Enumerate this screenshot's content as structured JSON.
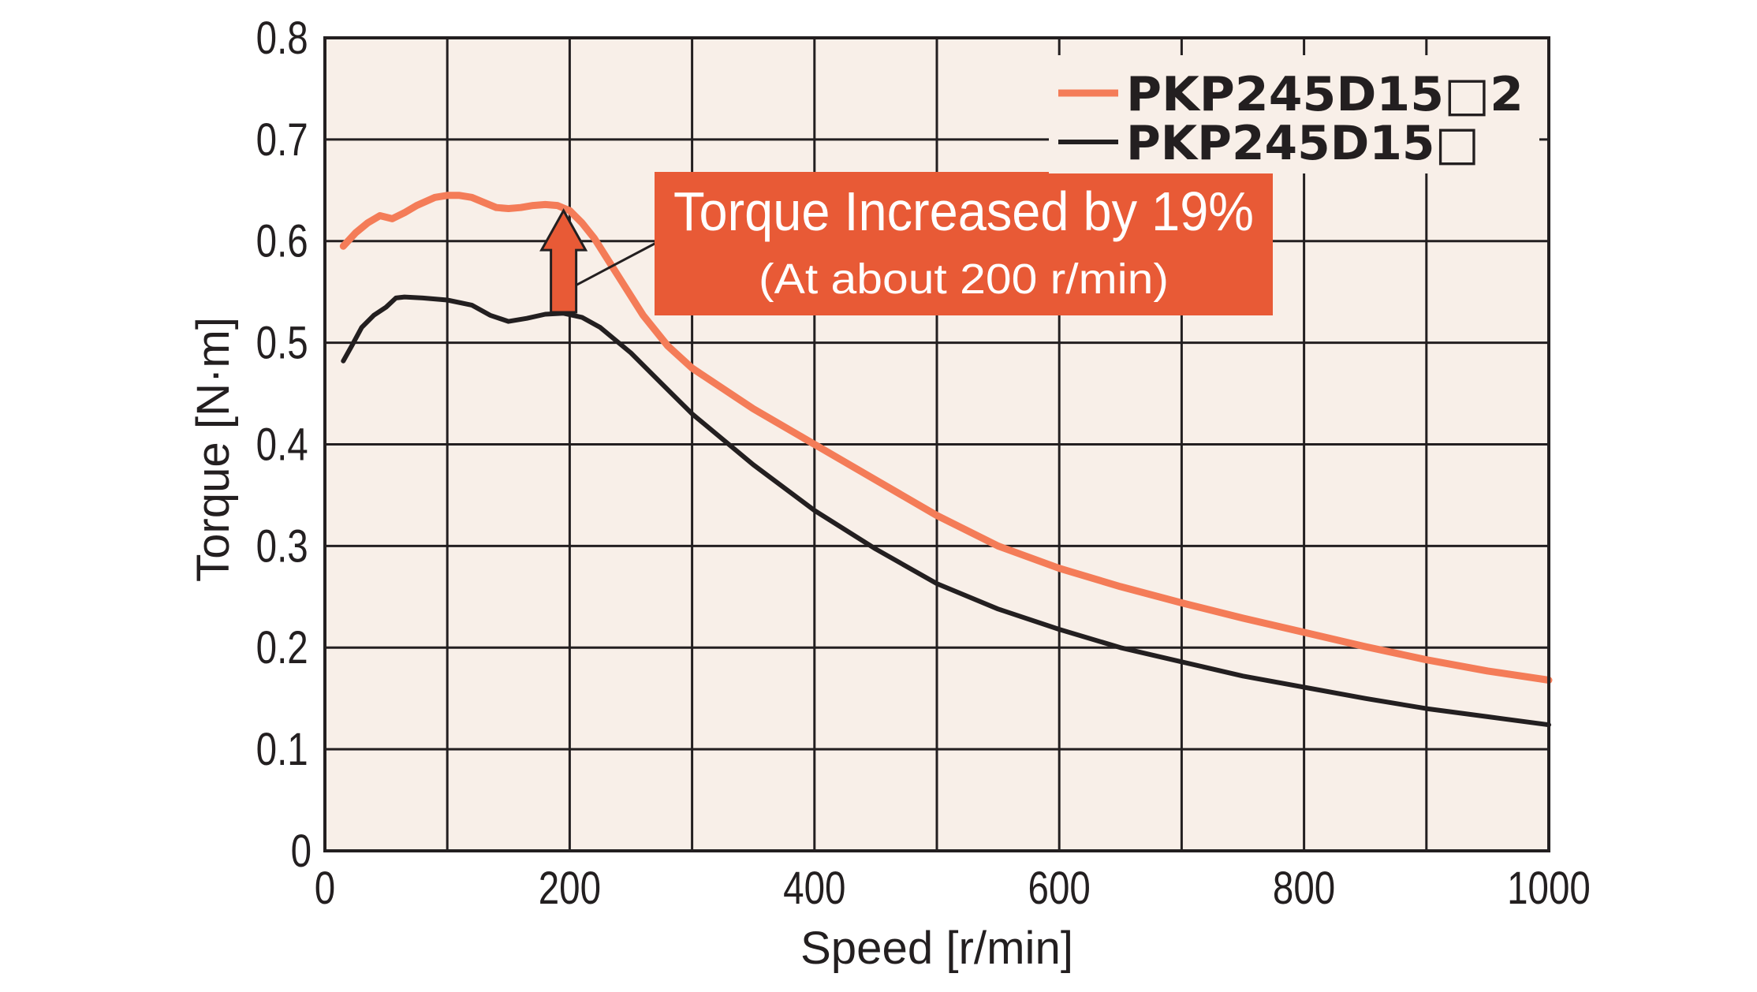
{
  "chart_data": {
    "type": "line",
    "xlabel": "Speed [r/min]",
    "ylabel": "Torque [N·m]",
    "xlim": [
      0,
      1000
    ],
    "ylim": [
      0,
      0.8
    ],
    "x_ticks": [
      "0",
      "200",
      "400",
      "600",
      "800",
      "1000"
    ],
    "y_ticks": [
      "0",
      "0.1",
      "0.2",
      "0.3",
      "0.4",
      "0.5",
      "0.6",
      "0.7",
      "0.8"
    ],
    "grid": true,
    "legend_position": "top-right",
    "background_color": "#f8efe8",
    "series": [
      {
        "name": "PKP245D15□2",
        "color": "#f47c58",
        "x": [
          15,
          25,
          35,
          45,
          55,
          65,
          75,
          90,
          100,
          110,
          120,
          130,
          140,
          150,
          160,
          170,
          180,
          190,
          200,
          210,
          220,
          240,
          260,
          280,
          300,
          350,
          400,
          450,
          500,
          550,
          600,
          650,
          700,
          750,
          800,
          850,
          900,
          950,
          1000
        ],
        "y": [
          0.595,
          0.608,
          0.618,
          0.625,
          0.622,
          0.628,
          0.635,
          0.643,
          0.645,
          0.645,
          0.643,
          0.638,
          0.633,
          0.632,
          0.633,
          0.635,
          0.636,
          0.635,
          0.63,
          0.618,
          0.603,
          0.565,
          0.527,
          0.497,
          0.475,
          0.435,
          0.4,
          0.365,
          0.33,
          0.3,
          0.278,
          0.26,
          0.244,
          0.229,
          0.215,
          0.201,
          0.188,
          0.177,
          0.168
        ]
      },
      {
        "name": "PKP245D15□",
        "color": "#231f20",
        "x": [
          15,
          22,
          30,
          40,
          50,
          58,
          65,
          80,
          100,
          120,
          135,
          150,
          165,
          180,
          195,
          210,
          225,
          250,
          275,
          300,
          350,
          400,
          450,
          500,
          550,
          600,
          650,
          700,
          750,
          800,
          850,
          900,
          950,
          1000
        ],
        "y": [
          0.482,
          0.497,
          0.515,
          0.527,
          0.535,
          0.544,
          0.545,
          0.544,
          0.542,
          0.537,
          0.527,
          0.521,
          0.524,
          0.528,
          0.529,
          0.525,
          0.515,
          0.49,
          0.46,
          0.43,
          0.38,
          0.335,
          0.297,
          0.263,
          0.238,
          0.218,
          0.2,
          0.186,
          0.172,
          0.161,
          0.15,
          0.14,
          0.132,
          0.124
        ]
      }
    ],
    "annotations": [
      {
        "text": "Torque Increased by 19%",
        "subtext": "(At about 200 r/min)",
        "box_color": "#e85a36",
        "arrow_x": 195,
        "arrow_from_y": 0.53,
        "arrow_to_y": 0.63
      }
    ]
  }
}
